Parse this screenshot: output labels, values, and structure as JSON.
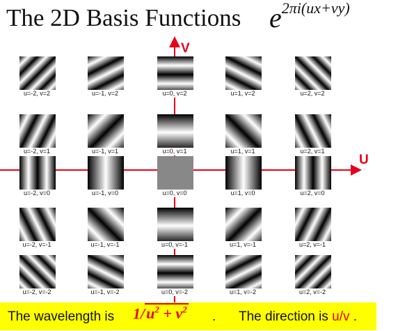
{
  "title": "The 2D Basis Functions",
  "formula": {
    "base": "e",
    "exponent": "2πi(ux+vy)"
  },
  "axes": {
    "v_label": "V",
    "u_label": "U",
    "color": "#e8001c"
  },
  "grid": {
    "rows": [
      {
        "v": 2,
        "cells": [
          {
            "u": -2,
            "label": "u=-2, v=2"
          },
          {
            "u": -1,
            "label": "u=-1, v=2"
          },
          {
            "u": 0,
            "label": "u=0, v=2"
          },
          {
            "u": 1,
            "label": "u=1, v=2"
          },
          {
            "u": 2,
            "label": "u=2, v=2"
          }
        ]
      },
      {
        "v": 1,
        "cells": [
          {
            "u": -2,
            "label": "u=-2, v=1"
          },
          {
            "u": -1,
            "label": "u=-1, v=1"
          },
          {
            "u": 0,
            "label": "u=0, v=1"
          },
          {
            "u": 1,
            "label": "u=1, v=1"
          },
          {
            "u": 2,
            "label": "u=2, v=1"
          }
        ]
      },
      {
        "v": 0,
        "cells": [
          {
            "u": -2,
            "label": "u=-2, v=0"
          },
          {
            "u": -1,
            "label": "u=-1, v=0"
          },
          {
            "u": 0,
            "label": "u=0, v=0"
          },
          {
            "u": 1,
            "label": "u=1, v=0"
          },
          {
            "u": 2,
            "label": "u=2, v=0"
          }
        ]
      },
      {
        "v": -1,
        "cells": [
          {
            "u": -2,
            "label": "u=-2, v=-1"
          },
          {
            "u": -1,
            "label": "u=-1, v=-1"
          },
          {
            "u": 0,
            "label": "u=0, v=-1"
          },
          {
            "u": 1,
            "label": "u=1, v=-1"
          },
          {
            "u": 2,
            "label": "u=2, v=-1"
          }
        ]
      },
      {
        "v": -2,
        "cells": [
          {
            "u": -2,
            "label": "u=-2, v=-2"
          },
          {
            "u": -1,
            "label": "u=-1, v=-2"
          },
          {
            "u": 0,
            "label": "u=0, v=-2"
          },
          {
            "u": 1,
            "label": "u=1, v=-2"
          },
          {
            "u": 2,
            "label": "u=2, v=-2"
          }
        ]
      }
    ]
  },
  "banner": {
    "wavelength_label": "The wavelength is",
    "wavelength_formula": "1/√(u² + v²)",
    "wavelength_tail": ".",
    "direction_label": "The direction is",
    "direction_value": "u/v",
    "direction_tail": ".",
    "background": "#ffff00"
  }
}
